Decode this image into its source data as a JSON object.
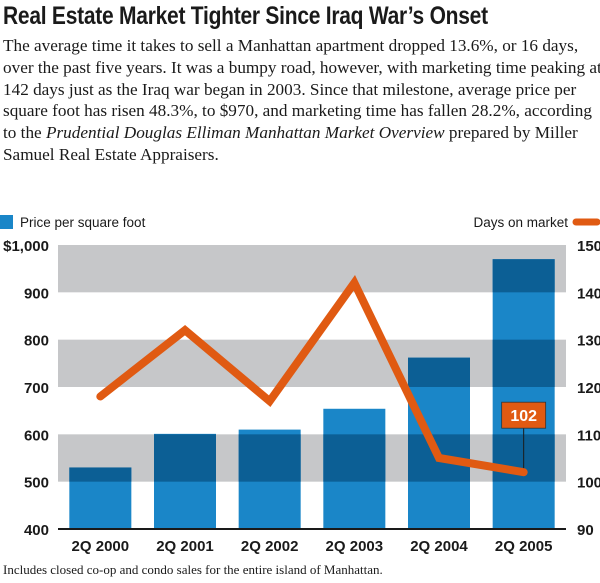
{
  "title": "Real Estate Market Tighter Since Iraq War’s Onset",
  "intro": {
    "text_before": "The average time it takes to sell a Manhattan apartment dropped 13.6%, or 16 days, over the past five years. It was a bumpy road, however, with marketing time peaking at 142 days just as the Iraq war began in 2003. Since that milestone, average price per square foot has risen 48.3%, to $970, and marketing time has fallen 28.2%, according to the ",
    "italic": "Prudential Douglas Elliman Manhattan Market Overview",
    "text_after": " prepared by Miller Samuel Real Estate Appraisers."
  },
  "footnote": "Includes closed co-op and condo sales for the entire island of Manhattan.",
  "chart_data": {
    "type": "bar+line",
    "categories": [
      "2Q 2000",
      "2Q 2001",
      "2Q 2002",
      "2Q 2003",
      "2Q 2004",
      "2Q 2005"
    ],
    "series": [
      {
        "name": "Price per square foot",
        "type": "bar",
        "axis": "left",
        "color": "#1a86c8",
        "values": [
          530,
          601,
          610,
          654,
          762,
          970
        ]
      },
      {
        "name": "Days on market",
        "type": "line",
        "axis": "right",
        "color": "#e05a12",
        "values": [
          118,
          132,
          117,
          142,
          105,
          102
        ]
      }
    ],
    "left_axis": {
      "ylim": [
        400,
        1000
      ],
      "ticks": [
        "400",
        "500",
        "600",
        "700",
        "800",
        "900",
        "$1,000"
      ]
    },
    "right_axis": {
      "ylim": [
        90,
        150
      ],
      "ticks": [
        "90",
        "100",
        "110",
        "120",
        "130",
        "140",
        "150"
      ]
    },
    "annotation": "102",
    "legend_placement": "top",
    "bands": "alternating gray bands 500-600, 700-800, 900-1000"
  }
}
